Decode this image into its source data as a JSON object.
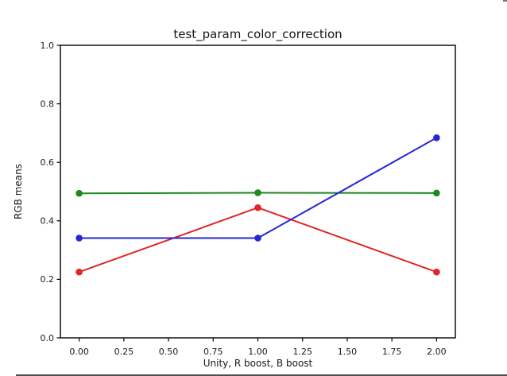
{
  "chart_data": {
    "type": "line",
    "title": "test_param_color_correction",
    "xlabel": "Unity, R boost, B boost",
    "ylabel": "RGB means",
    "x": [
      0,
      1,
      2
    ],
    "series": [
      {
        "name": "red",
        "color": "#e02626",
        "values": [
          0.225,
          0.445,
          0.225
        ]
      },
      {
        "name": "green",
        "color": "#1e8a1e",
        "values": [
          0.494,
          0.496,
          0.495
        ]
      },
      {
        "name": "blue",
        "color": "#2626d4",
        "values": [
          0.341,
          0.341,
          0.684
        ]
      }
    ],
    "xlim": [
      -0.105,
      2.105
    ],
    "ylim": [
      0,
      1
    ],
    "xtick_values": [
      0,
      0.25,
      0.5,
      0.75,
      1.0,
      1.25,
      1.5,
      1.75,
      2.0
    ],
    "xtick_labels": [
      "0.00",
      "0.25",
      "0.50",
      "0.75",
      "1.00",
      "1.25",
      "1.50",
      "1.75",
      "2.00"
    ],
    "ytick_values": [
      0,
      0.2,
      0.4,
      0.6,
      0.8,
      1.0
    ],
    "ytick_labels": [
      "0.0",
      "0.2",
      "0.4",
      "0.6",
      "0.8",
      "1.0"
    ],
    "grid": false,
    "legend": null,
    "marker": "o",
    "line_style": "solid",
    "axis_color": "#000000",
    "text_color": "#1a1a1a",
    "background_color": "#ffffff"
  }
}
